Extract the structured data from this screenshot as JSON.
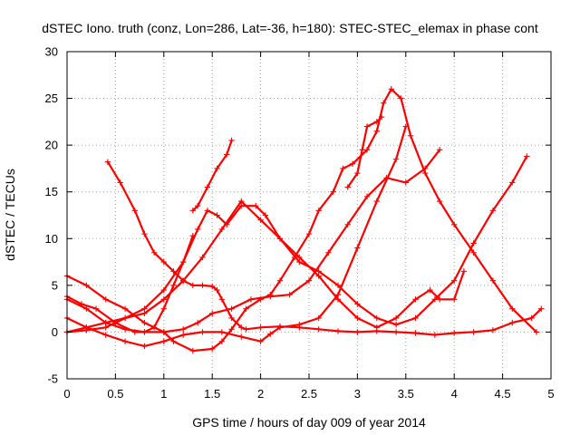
{
  "chart_data": {
    "type": "scatter",
    "title": "dSTEC Iono. truth (conz, Lon=286, Lat=-36, h=180): STEC-STEC_elemax in phase cont",
    "xlabel": "GPS time / hours of day 009 of year 2014",
    "ylabel": "dSTEC  / TECUs",
    "xlim": [
      0,
      5
    ],
    "ylim": [
      -5,
      30
    ],
    "xticks": [
      0,
      0.5,
      1,
      1.5,
      2,
      2.5,
      3,
      3.5,
      4,
      4.5,
      5
    ],
    "xtick_labels": [
      "0",
      "0.5",
      "1",
      "1.5",
      "2",
      "2.5",
      "3",
      "3.5",
      "4",
      "4.5",
      "5"
    ],
    "yticks": [
      -5,
      0,
      5,
      10,
      15,
      20,
      25,
      30
    ],
    "ytick_labels": [
      "-5",
      "0",
      "5",
      "10",
      "15",
      "20",
      "25",
      "30"
    ],
    "grid": true,
    "marker": "+",
    "color": "#ff0000",
    "series": [
      {
        "x": [
          0.42,
          0.55,
          0.7,
          0.8,
          0.9,
          1.0,
          1.1,
          1.2,
          1.3,
          1.4,
          1.5,
          1.55,
          1.6,
          1.7,
          1.8,
          1.85,
          2.0,
          2.2,
          2.4,
          2.6,
          2.8,
          3.0,
          3.2,
          3.4,
          3.6,
          3.8,
          4.0,
          4.2,
          4.4,
          4.6,
          4.8,
          4.9
        ],
        "y": [
          18.2,
          16.0,
          13.0,
          10.5,
          8.5,
          7.5,
          6.5,
          5.5,
          5.0,
          5.0,
          4.9,
          4.5,
          3.5,
          1.5,
          0.5,
          0.3,
          0.5,
          0.6,
          0.5,
          0.3,
          0.1,
          0.0,
          0.1,
          0.0,
          -0.1,
          -0.3,
          -0.1,
          0.0,
          0.2,
          1.0,
          1.5,
          2.5
        ]
      },
      {
        "x": [
          0.0,
          0.2,
          0.4,
          0.6,
          0.8,
          1.0,
          1.2,
          1.35,
          1.45,
          1.55,
          1.65,
          1.8,
          1.95,
          2.05,
          2.2,
          2.4,
          2.6,
          2.8,
          3.0,
          3.2,
          3.4,
          3.6,
          3.8,
          4.0,
          4.2,
          4.4,
          4.6,
          4.75
        ],
        "y": [
          0.0,
          0.2,
          0.5,
          1.5,
          2.5,
          4.5,
          7.5,
          11.0,
          13.0,
          12.5,
          11.5,
          13.5,
          13.5,
          12.5,
          10.0,
          7.5,
          6.5,
          5.0,
          3.0,
          1.5,
          0.8,
          1.5,
          3.5,
          5.5,
          9.5,
          13.0,
          16.0,
          18.8
        ]
      },
      {
        "x": [
          0.0,
          0.2,
          0.4,
          0.6,
          0.8,
          1.0,
          1.2,
          1.35,
          1.5,
          1.7,
          1.9,
          2.1,
          2.3,
          2.5,
          2.7,
          2.9,
          3.1,
          3.3,
          3.5,
          3.7,
          3.85
        ],
        "y": [
          3.5,
          2.5,
          1.0,
          0.3,
          0.0,
          0.0,
          0.3,
          1.0,
          2.0,
          2.5,
          3.5,
          3.8,
          4.0,
          5.5,
          8.5,
          11.5,
          14.5,
          16.5,
          16.0,
          17.5,
          19.5
        ]
      },
      {
        "x": [
          0.0,
          0.2,
          0.4,
          0.6,
          0.8,
          1.0,
          1.2,
          1.4,
          1.6,
          1.8,
          2.0,
          2.2,
          2.4,
          2.6,
          2.8,
          3.0,
          3.2,
          3.4,
          3.6,
          3.75,
          3.85,
          4.0,
          4.1
        ],
        "y": [
          0.0,
          0.5,
          1.0,
          1.5,
          2.0,
          3.5,
          5.5,
          8.0,
          11.0,
          14.0,
          12.0,
          10.0,
          8.0,
          6.0,
          3.5,
          1.5,
          0.5,
          1.5,
          3.5,
          4.5,
          3.5,
          3.5,
          6.5
        ]
      },
      {
        "x": [
          0.0,
          0.2,
          0.4,
          0.6,
          0.8,
          1.0,
          1.1,
          1.3,
          1.5,
          1.6,
          1.7,
          1.85,
          2.0,
          2.1,
          2.2,
          2.35,
          2.5,
          2.6,
          2.75,
          2.85,
          2.95,
          3.1,
          3.2,
          3.27,
          3.35,
          3.45,
          3.55,
          3.7,
          3.85,
          4.0,
          4.2,
          4.4,
          4.6,
          4.85
        ],
        "y": [
          6.0,
          5.0,
          3.5,
          2.5,
          1.0,
          0.0,
          -1.0,
          -2.0,
          -1.8,
          -1.0,
          0.3,
          2.5,
          3.5,
          4.0,
          5.5,
          8.0,
          10.5,
          13.0,
          15.0,
          17.5,
          18.0,
          19.5,
          21.5,
          24.5,
          26.0,
          25.0,
          21.0,
          17.0,
          14.0,
          11.5,
          8.5,
          5.5,
          2.5,
          0.0
        ]
      },
      {
        "x": [
          0.0,
          0.2,
          0.4,
          0.6,
          0.8,
          1.0,
          1.2,
          1.4,
          1.6,
          1.8,
          2.0,
          2.1,
          2.2,
          2.4,
          2.6,
          2.8,
          3.0,
          3.2,
          3.4,
          3.5
        ],
        "y": [
          1.5,
          0.5,
          -0.3,
          -1.0,
          -1.5,
          -1.0,
          -0.3,
          0.0,
          0.0,
          -0.5,
          -1.0,
          -0.2,
          0.5,
          0.8,
          1.5,
          4.0,
          9.0,
          14.0,
          18.5,
          22.0
        ]
      },
      {
        "x": [
          0.0,
          0.15,
          0.3,
          0.5,
          0.7,
          0.8,
          0.9,
          1.0,
          1.1,
          1.2,
          1.3
        ],
        "y": [
          3.8,
          3.0,
          2.5,
          1.0,
          0.0,
          0.0,
          0.5,
          2.5,
          5.0,
          7.5,
          10.3
        ]
      },
      {
        "x": [
          1.3,
          1.35,
          1.45,
          1.55,
          1.65,
          1.7
        ],
        "y": [
          13.0,
          13.5,
          15.5,
          17.5,
          19.0,
          20.5
        ]
      },
      {
        "x": [
          2.9,
          3.0,
          3.05,
          3.1,
          3.2,
          3.25
        ],
        "y": [
          15.5,
          17.0,
          19.5,
          22.0,
          22.5,
          23.0
        ]
      }
    ]
  }
}
